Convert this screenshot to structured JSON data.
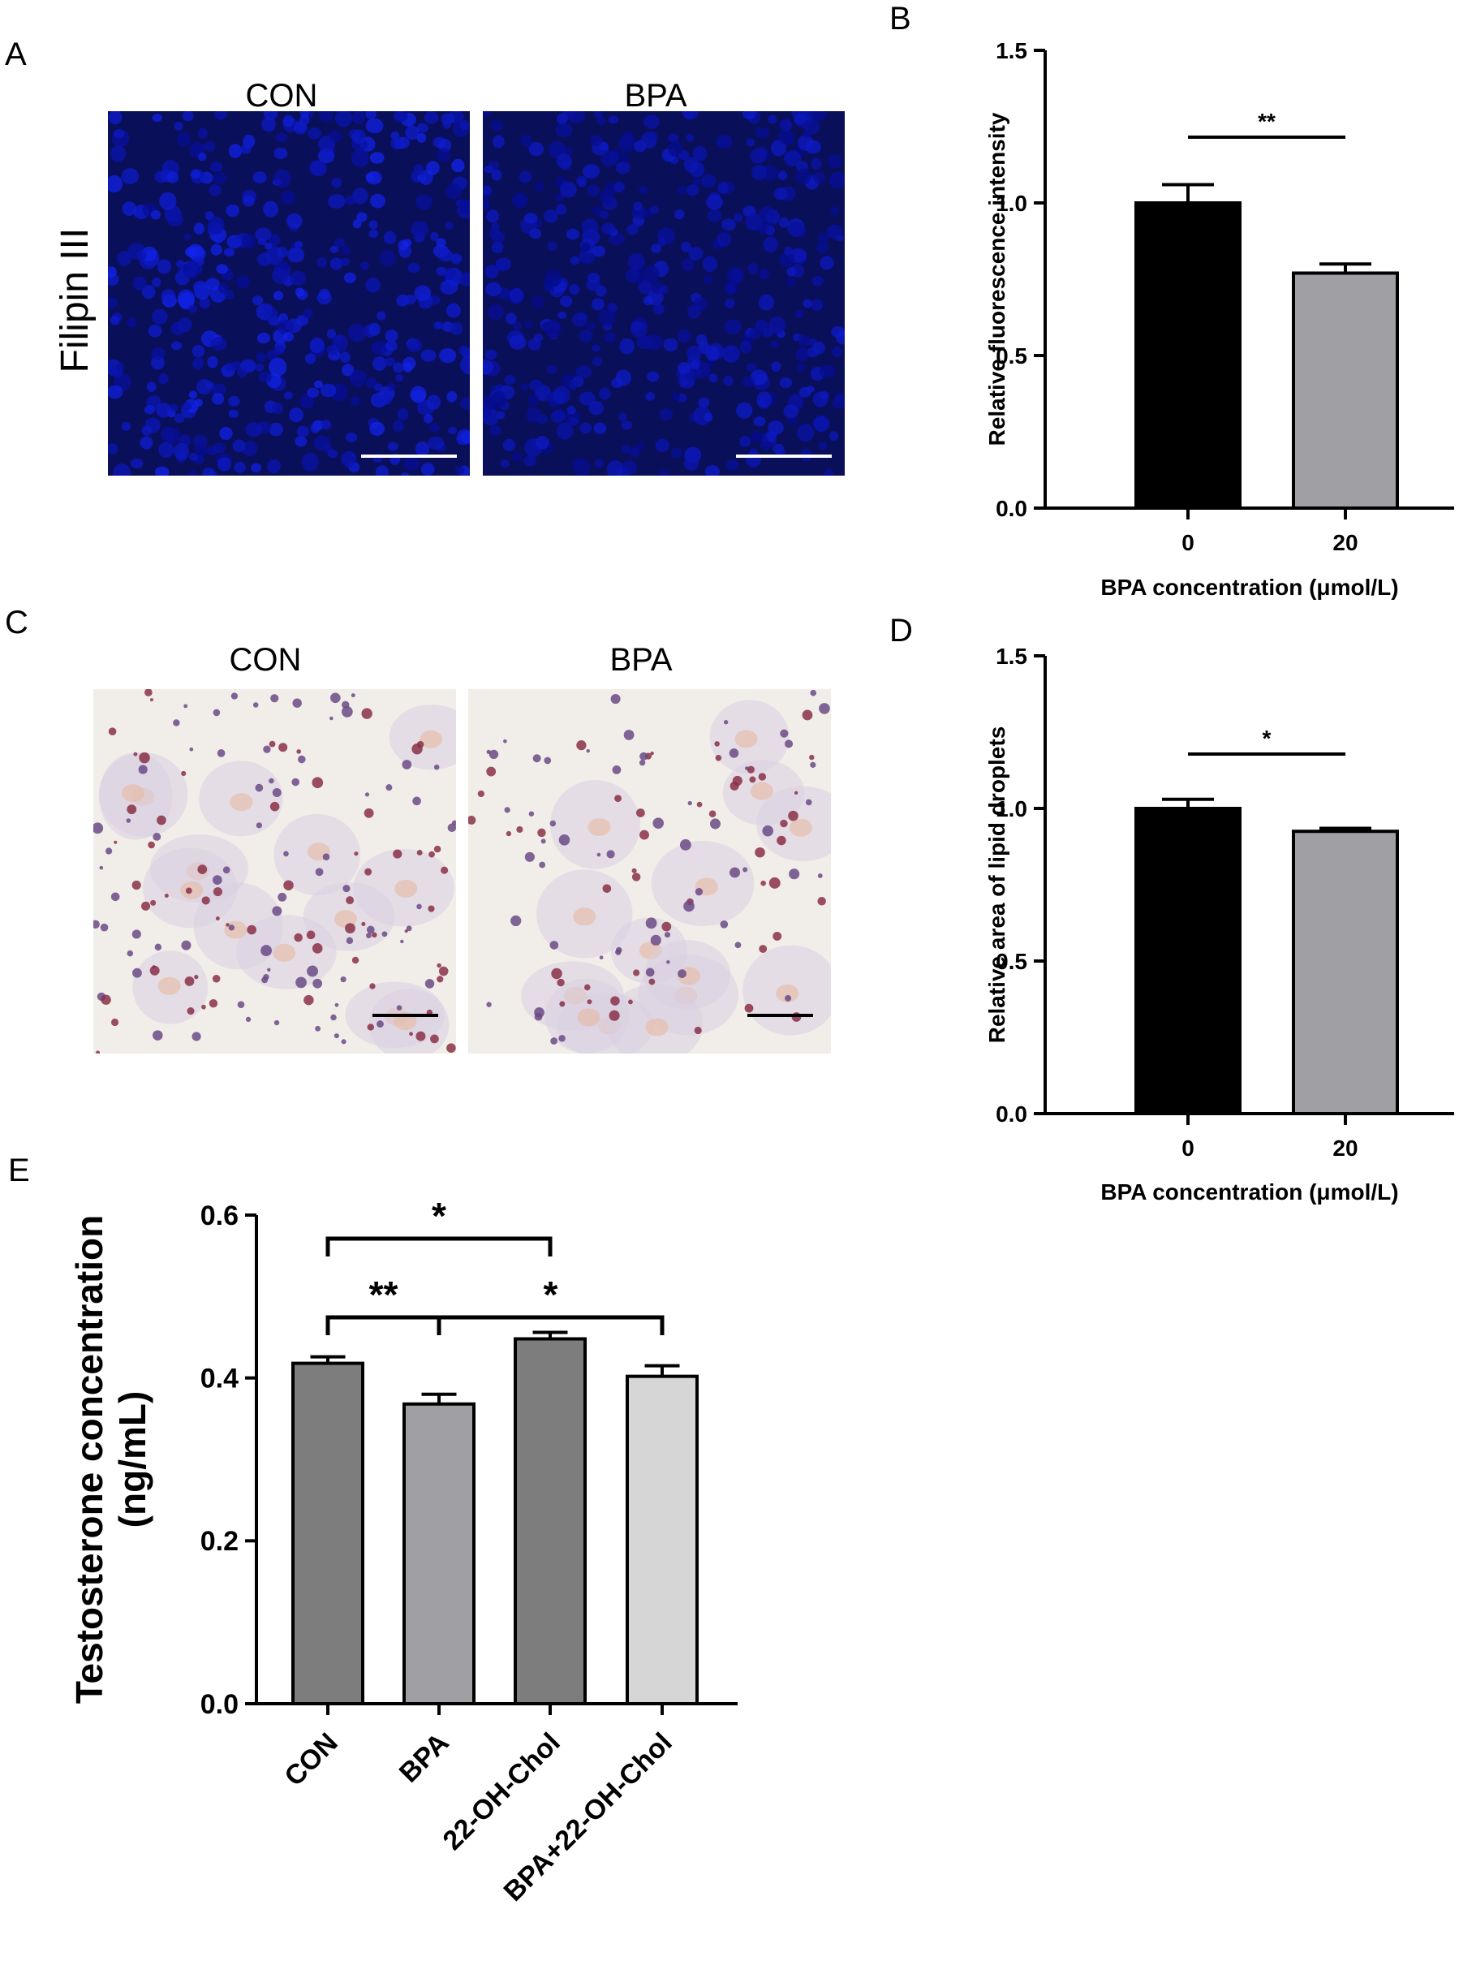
{
  "panels": {
    "A": {
      "letter": "A",
      "row_label": "Filipin III",
      "images": [
        {
          "label": "CON",
          "kind": "fluorescence",
          "intensity": 1.0
        },
        {
          "label": "BPA",
          "kind": "fluorescence",
          "intensity": 0.78
        }
      ]
    },
    "C": {
      "letter": "C",
      "images": [
        {
          "label": "CON",
          "kind": "oil-red-o-stain"
        },
        {
          "label": "BPA",
          "kind": "oil-red-o-stain"
        }
      ]
    },
    "B": {
      "letter": "B"
    },
    "D": {
      "letter": "D"
    },
    "E": {
      "letter": "E"
    }
  },
  "colors": {
    "fluor_bg": "#0a0f5a",
    "fluor_cell": "#1c2bd8",
    "stain_bg": "#f1eee9",
    "bar_black": "#000000",
    "bar_gray": "#a0a0a4",
    "E_con": "#7d7d7d",
    "E_bpa": "#a0a0a4",
    "E_22oh": "#7d7d7d",
    "E_bpa22oh": "#d6d6d6"
  },
  "chart_data": [
    {
      "id": "B",
      "type": "bar",
      "xlabel": "BPA concentration (μmol/L)",
      "ylabel": "Relative fluorescence intensity",
      "categories": [
        "0",
        "20"
      ],
      "values": [
        1.0,
        0.77
      ],
      "errors": [
        0.06,
        0.03
      ],
      "ylim": [
        0,
        1.5
      ],
      "yticks": [
        "0.0",
        "0.5",
        "1.0",
        "1.5"
      ],
      "significance": [
        {
          "from": 0,
          "to": 1,
          "label": "**"
        }
      ]
    },
    {
      "id": "D",
      "type": "bar",
      "xlabel": "BPA concentration (μmol/L)",
      "ylabel": "Relative area of lipid droplets",
      "categories": [
        "0",
        "20"
      ],
      "values": [
        1.0,
        0.925
      ],
      "errors": [
        0.03,
        0.01
      ],
      "ylim": [
        0,
        1.5
      ],
      "yticks": [
        "0.0",
        "0.5",
        "1.0",
        "1.5"
      ],
      "significance": [
        {
          "from": 0,
          "to": 1,
          "label": "*"
        }
      ]
    },
    {
      "id": "E",
      "type": "bar",
      "xlabel": "",
      "ylabel": "Testosterone concentration (ng/mL)",
      "ylabel_lines": [
        "Testosterone concentration",
        "(ng/mL)"
      ],
      "categories": [
        "CON",
        "BPA",
        "22-OH-Chol",
        "BPA+22-OH-Chol"
      ],
      "values": [
        0.418,
        0.368,
        0.448,
        0.402
      ],
      "errors": [
        0.008,
        0.012,
        0.008,
        0.013
      ],
      "ylim": [
        0,
        0.6
      ],
      "yticks": [
        "0.0",
        "0.2",
        "0.4",
        "0.6"
      ],
      "significance": [
        {
          "from": 0,
          "to": 2,
          "label": "*"
        },
        {
          "from": 0,
          "to": 1,
          "label": "**"
        },
        {
          "from": 1,
          "to": 3,
          "label": "*"
        }
      ]
    }
  ]
}
